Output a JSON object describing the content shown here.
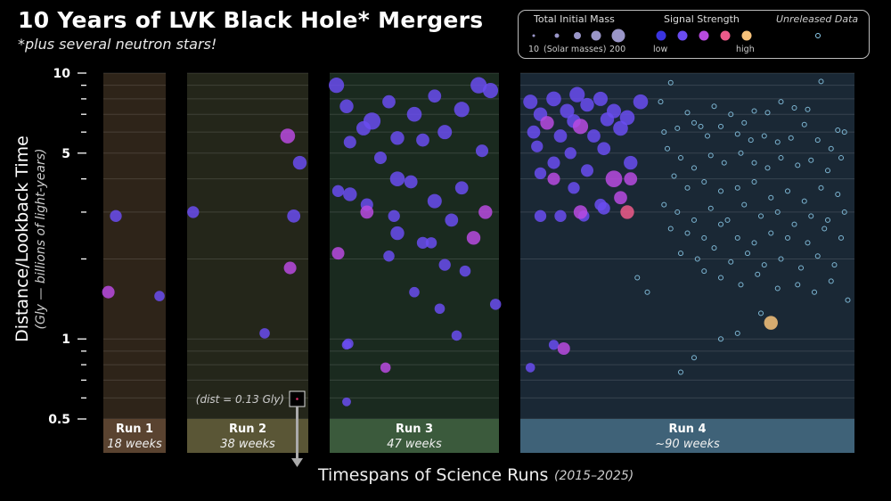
{
  "title": "10 Years of LVK Black Hole* Mergers",
  "subtitle": "*plus several neutron stars!",
  "legend": {
    "mass_title": "Total Initial Mass",
    "mass_min": "10",
    "mass_unit": "(Solar masses)",
    "mass_max": "200",
    "signal_title": "Signal Strength",
    "signal_low": "low",
    "signal_high": "high",
    "unreleased_title": "Unreleased Data"
  },
  "colors": {
    "signal_scale": [
      "#3a34e0",
      "#6a4cf0",
      "#b84ae0",
      "#ee5a8a",
      "#f7c27a"
    ],
    "unreleased": "#8fd0f0",
    "run1_bg": "#2e2419",
    "run2_bg": "#24261a",
    "run3_bg": "#1a2a1f",
    "run4_bg": "#1a2835"
  },
  "annotation": "(dist = 0.13 Gly)",
  "xlabel": "Timespans of Science Runs",
  "xlabel_sub": "(2015–2025)",
  "chart_data": {
    "type": "scatter",
    "title": "10 Years of LVK Black Hole* Mergers",
    "ylabel": "Distance/Lookback Time",
    "ylabel_sub": "(Gly — billions of light-years)",
    "yscale": "log",
    "ylim": [
      0.5,
      10
    ],
    "yticks": [
      0.5,
      1,
      5,
      10
    ],
    "ytick_labels": [
      "0.5",
      "1",
      "5",
      "10"
    ],
    "grid": true,
    "legend": "top-right",
    "runs": [
      {
        "name": "Run 1",
        "duration": "18 weeks",
        "points": [
          [
            0.2,
            2.9,
            30,
            0.3
          ],
          [
            0.08,
            1.5,
            35,
            0.6
          ],
          [
            0.9,
            1.45,
            20,
            0.2
          ]
        ]
      },
      {
        "name": "Run 2",
        "duration": "38 weeks",
        "points": [
          [
            0.05,
            3.0,
            30,
            0.25
          ],
          [
            0.83,
            5.8,
            55,
            0.4
          ],
          [
            0.93,
            4.6,
            45,
            0.3
          ],
          [
            0.88,
            2.9,
            40,
            0.35
          ],
          [
            0.85,
            1.85,
            35,
            0.55
          ],
          [
            0.64,
            1.05,
            20,
            0.3
          ]
        ]
      },
      {
        "name": "Run 3",
        "duration": "47 weeks",
        "points": [
          [
            0.04,
            9.0,
            60,
            0.15
          ],
          [
            0.1,
            7.5,
            45,
            0.2
          ],
          [
            0.25,
            6.6,
            80,
            0.3
          ],
          [
            0.35,
            7.8,
            40,
            0.2
          ],
          [
            0.5,
            7.0,
            55,
            0.25
          ],
          [
            0.62,
            8.2,
            40,
            0.15
          ],
          [
            0.78,
            7.3,
            60,
            0.3
          ],
          [
            0.88,
            9.0,
            70,
            0.2
          ],
          [
            0.95,
            8.6,
            60,
            0.2
          ],
          [
            0.12,
            5.5,
            35,
            0.2
          ],
          [
            0.2,
            6.2,
            50,
            0.25
          ],
          [
            0.3,
            4.8,
            35,
            0.2
          ],
          [
            0.4,
            5.7,
            45,
            0.3
          ],
          [
            0.55,
            5.6,
            40,
            0.2
          ],
          [
            0.68,
            6.0,
            50,
            0.25
          ],
          [
            0.9,
            5.1,
            35,
            0.3
          ],
          [
            0.05,
            3.6,
            30,
            0.3
          ],
          [
            0.12,
            3.5,
            45,
            0.2
          ],
          [
            0.22,
            3.2,
            35,
            0.25
          ],
          [
            0.4,
            4.0,
            55,
            0.2
          ],
          [
            0.48,
            3.9,
            40,
            0.35
          ],
          [
            0.62,
            3.3,
            50,
            0.3
          ],
          [
            0.78,
            3.7,
            40,
            0.2
          ],
          [
            0.92,
            3.0,
            45,
            0.4
          ],
          [
            0.22,
            3.0,
            40,
            0.6
          ],
          [
            0.38,
            2.9,
            30,
            0.3
          ],
          [
            0.4,
            2.5,
            45,
            0.2
          ],
          [
            0.55,
            2.3,
            30,
            0.3
          ],
          [
            0.72,
            2.8,
            40,
            0.25
          ],
          [
            0.85,
            2.4,
            45,
            0.55
          ],
          [
            0.05,
            2.1,
            35,
            0.6
          ],
          [
            0.35,
            2.05,
            25,
            0.3
          ],
          [
            0.6,
            2.3,
            25,
            0.2
          ],
          [
            0.68,
            1.9,
            30,
            0.3
          ],
          [
            0.8,
            1.8,
            25,
            0.2
          ],
          [
            0.5,
            1.5,
            20,
            0.2
          ],
          [
            0.65,
            1.3,
            20,
            0.3
          ],
          [
            0.75,
            1.03,
            20,
            0.3
          ],
          [
            0.98,
            1.35,
            25,
            0.2
          ],
          [
            0.33,
            0.78,
            20,
            0.4
          ],
          [
            0.11,
            0.96,
            20,
            0.3
          ],
          [
            0.1,
            0.95,
            15,
            0.3
          ],
          [
            0.1,
            0.58,
            12,
            0.2
          ]
        ]
      },
      {
        "name": "Run 4",
        "duration": "~90 weeks",
        "points": [
          [
            0.03,
            7.8,
            50,
            0.2
          ],
          [
            0.06,
            7.0,
            45,
            0.3
          ],
          [
            0.1,
            8.0,
            55,
            0.2
          ],
          [
            0.14,
            7.2,
            50,
            0.35
          ],
          [
            0.17,
            8.3,
            60,
            0.25
          ],
          [
            0.2,
            7.6,
            45,
            0.3
          ],
          [
            0.24,
            8.0,
            50,
            0.2
          ],
          [
            0.28,
            7.2,
            50,
            0.35
          ],
          [
            0.32,
            6.8,
            55,
            0.25
          ],
          [
            0.36,
            7.8,
            55,
            0.3
          ],
          [
            0.04,
            6.0,
            40,
            0.3
          ],
          [
            0.08,
            6.5,
            45,
            0.4
          ],
          [
            0.12,
            5.8,
            40,
            0.3
          ],
          [
            0.16,
            6.6,
            45,
            0.35
          ],
          [
            0.22,
            5.8,
            40,
            0.25
          ],
          [
            0.26,
            6.7,
            45,
            0.3
          ],
          [
            0.3,
            6.2,
            55,
            0.3
          ],
          [
            0.18,
            6.3,
            60,
            0.6
          ],
          [
            0.05,
            5.3,
            30,
            0.25
          ],
          [
            0.1,
            4.6,
            35,
            0.3
          ],
          [
            0.15,
            5.0,
            30,
            0.35
          ],
          [
            0.2,
            4.3,
            35,
            0.3
          ],
          [
            0.25,
            5.2,
            40,
            0.25
          ],
          [
            0.33,
            4.6,
            45,
            0.35
          ],
          [
            0.06,
            4.2,
            30,
            0.3
          ],
          [
            0.1,
            4.0,
            35,
            0.4
          ],
          [
            0.28,
            4.0,
            75,
            0.55
          ],
          [
            0.33,
            4.0,
            40,
            0.55
          ],
          [
            0.3,
            3.4,
            40,
            0.55
          ],
          [
            0.16,
            3.7,
            30,
            0.25
          ],
          [
            0.25,
            3.1,
            35,
            0.25
          ],
          [
            0.06,
            2.9,
            30,
            0.2
          ],
          [
            0.12,
            2.9,
            30,
            0.25
          ],
          [
            0.19,
            2.9,
            25,
            0.3
          ],
          [
            0.24,
            3.2,
            30,
            0.3
          ],
          [
            0.18,
            3.0,
            45,
            0.6
          ],
          [
            0.32,
            3.0,
            45,
            0.65
          ],
          [
            0.03,
            0.78,
            15,
            0.2
          ],
          [
            0.1,
            0.95,
            18,
            0.3
          ],
          [
            0.13,
            0.92,
            35,
            0.55
          ],
          [
            0.75,
            1.15,
            45,
            0.95
          ]
        ],
        "unreleased_points": [
          [
            0.42,
            7.8
          ],
          [
            0.45,
            9.2
          ],
          [
            0.5,
            7.1
          ],
          [
            0.54,
            6.3
          ],
          [
            0.58,
            7.5
          ],
          [
            0.63,
            7.0
          ],
          [
            0.67,
            6.5
          ],
          [
            0.7,
            7.2
          ],
          [
            0.74,
            7.1
          ],
          [
            0.78,
            7.8
          ],
          [
            0.82,
            7.4
          ],
          [
            0.86,
            7.3
          ],
          [
            0.9,
            9.3
          ],
          [
            0.95,
            6.1
          ],
          [
            0.43,
            6.0
          ],
          [
            0.47,
            6.2
          ],
          [
            0.52,
            6.5
          ],
          [
            0.56,
            5.8
          ],
          [
            0.6,
            6.3
          ],
          [
            0.65,
            5.9
          ],
          [
            0.69,
            5.6
          ],
          [
            0.73,
            5.8
          ],
          [
            0.77,
            5.5
          ],
          [
            0.81,
            5.7
          ],
          [
            0.85,
            6.4
          ],
          [
            0.89,
            5.6
          ],
          [
            0.93,
            5.2
          ],
          [
            0.97,
            6.0
          ],
          [
            0.44,
            5.2
          ],
          [
            0.48,
            4.8
          ],
          [
            0.52,
            4.4
          ],
          [
            0.57,
            4.9
          ],
          [
            0.61,
            4.6
          ],
          [
            0.66,
            5.0
          ],
          [
            0.7,
            4.6
          ],
          [
            0.74,
            4.4
          ],
          [
            0.78,
            4.8
          ],
          [
            0.83,
            4.5
          ],
          [
            0.87,
            4.7
          ],
          [
            0.92,
            4.3
          ],
          [
            0.96,
            4.8
          ],
          [
            0.46,
            4.1
          ],
          [
            0.5,
            3.7
          ],
          [
            0.55,
            3.9
          ],
          [
            0.6,
            3.6
          ],
          [
            0.65,
            3.7
          ],
          [
            0.7,
            3.9
          ],
          [
            0.75,
            3.4
          ],
          [
            0.8,
            3.6
          ],
          [
            0.85,
            3.3
          ],
          [
            0.9,
            3.7
          ],
          [
            0.95,
            3.5
          ],
          [
            0.43,
            3.2
          ],
          [
            0.47,
            3.0
          ],
          [
            0.52,
            2.8
          ],
          [
            0.57,
            3.1
          ],
          [
            0.62,
            2.8
          ],
          [
            0.67,
            3.2
          ],
          [
            0.72,
            2.9
          ],
          [
            0.77,
            3.0
          ],
          [
            0.82,
            2.7
          ],
          [
            0.87,
            2.9
          ],
          [
            0.92,
            2.8
          ],
          [
            0.97,
            3.0
          ],
          [
            0.45,
            2.6
          ],
          [
            0.5,
            2.5
          ],
          [
            0.55,
            2.4
          ],
          [
            0.6,
            2.7
          ],
          [
            0.65,
            2.4
          ],
          [
            0.7,
            2.3
          ],
          [
            0.75,
            2.5
          ],
          [
            0.8,
            2.4
          ],
          [
            0.86,
            2.3
          ],
          [
            0.91,
            2.6
          ],
          [
            0.96,
            2.4
          ],
          [
            0.48,
            2.1
          ],
          [
            0.53,
            2.0
          ],
          [
            0.58,
            2.2
          ],
          [
            0.63,
            1.95
          ],
          [
            0.68,
            2.1
          ],
          [
            0.73,
            1.9
          ],
          [
            0.78,
            2.0
          ],
          [
            0.84,
            1.85
          ],
          [
            0.89,
            2.05
          ],
          [
            0.94,
            1.9
          ],
          [
            0.35,
            1.7
          ],
          [
            0.38,
            1.5
          ],
          [
            0.55,
            1.8
          ],
          [
            0.6,
            1.7
          ],
          [
            0.66,
            1.6
          ],
          [
            0.71,
            1.75
          ],
          [
            0.77,
            1.55
          ],
          [
            0.83,
            1.6
          ],
          [
            0.88,
            1.5
          ],
          [
            0.93,
            1.65
          ],
          [
            0.98,
            1.4
          ],
          [
            0.6,
            1.0
          ],
          [
            0.65,
            1.05
          ],
          [
            0.72,
            1.25
          ],
          [
            0.52,
            0.85
          ],
          [
            0.48,
            0.75
          ]
        ]
      }
    ]
  },
  "y_ticks_major": [
    0.5,
    1,
    5,
    10
  ],
  "y_ticks_minor": [
    0.6,
    0.7,
    0.8,
    0.9,
    2,
    3,
    4,
    6,
    7,
    8,
    9
  ]
}
